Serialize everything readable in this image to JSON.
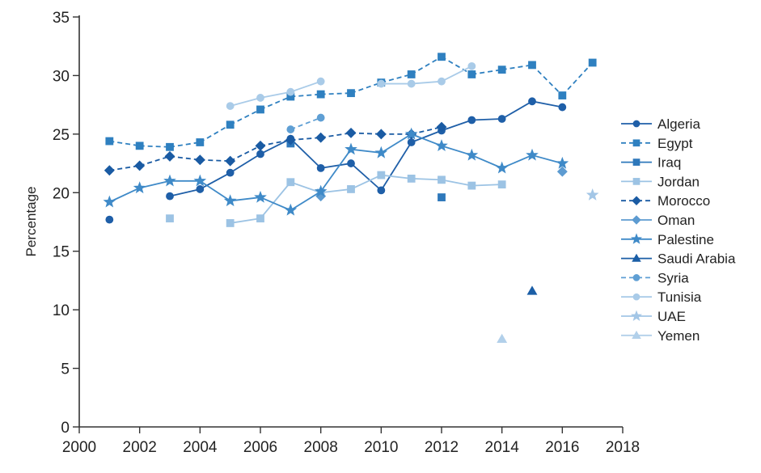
{
  "chart_data": {
    "type": "line",
    "title": "",
    "xlabel": "",
    "ylabel": "Percentage",
    "xlim": [
      2000,
      2018
    ],
    "ylim": [
      0,
      35
    ],
    "x_ticks": [
      2000,
      2002,
      2004,
      2006,
      2008,
      2010,
      2012,
      2014,
      2016,
      2018
    ],
    "y_ticks": [
      0,
      5,
      10,
      15,
      20,
      25,
      30,
      35
    ],
    "grid": false,
    "legend_position": "right",
    "series": [
      {
        "name": "Algeria",
        "color": "#1f5fa8",
        "dash": "solid",
        "marker": "circle",
        "points": [
          [
            2001,
            17.7
          ],
          [
            2003,
            19.7
          ],
          [
            2004,
            20.3
          ],
          [
            2005,
            21.7
          ],
          [
            2006,
            23.3
          ],
          [
            2007,
            24.6
          ],
          [
            2008,
            22.1
          ],
          [
            2009,
            22.5
          ],
          [
            2010,
            20.2
          ],
          [
            2011,
            24.3
          ],
          [
            2012,
            25.3
          ],
          [
            2013,
            26.2
          ],
          [
            2014,
            26.3
          ],
          [
            2015,
            27.8
          ],
          [
            2016,
            27.3
          ]
        ]
      },
      {
        "name": "Egypt",
        "color": "#2f80c0",
        "dash": "dashed",
        "marker": "square",
        "points": [
          [
            2001,
            24.4
          ],
          [
            2002,
            24.0
          ],
          [
            2003,
            23.9
          ],
          [
            2004,
            24.3
          ],
          [
            2005,
            25.8
          ],
          [
            2006,
            27.1
          ],
          [
            2007,
            28.2
          ],
          [
            2008,
            28.4
          ],
          [
            2009,
            28.5
          ],
          [
            2010,
            29.4
          ],
          [
            2011,
            30.1
          ],
          [
            2012,
            31.6
          ],
          [
            2013,
            30.1
          ],
          [
            2014,
            30.5
          ],
          [
            2015,
            30.9
          ],
          [
            2016,
            28.3
          ],
          [
            2017,
            31.1
          ]
        ]
      },
      {
        "name": "Iraq",
        "color": "#2e78bb",
        "dash": "solid",
        "marker": "square",
        "points": [
          [
            2007,
            24.2
          ],
          [
            2012,
            19.6
          ]
        ]
      },
      {
        "name": "Jordan",
        "color": "#9cc3e4",
        "dash": "solid",
        "marker": "square",
        "points": [
          [
            2003,
            17.8
          ],
          [
            2005,
            17.4
          ],
          [
            2006,
            17.8
          ],
          [
            2007,
            20.9
          ],
          [
            2008,
            20.0
          ],
          [
            2009,
            20.3
          ],
          [
            2010,
            21.5
          ],
          [
            2011,
            21.2
          ],
          [
            2012,
            21.1
          ],
          [
            2013,
            20.6
          ],
          [
            2014,
            20.7
          ]
        ]
      },
      {
        "name": "Morocco",
        "color": "#1a5ba3",
        "dash": "dashed",
        "marker": "diamond",
        "points": [
          [
            2001,
            21.9
          ],
          [
            2002,
            22.3
          ],
          [
            2003,
            23.1
          ],
          [
            2004,
            22.8
          ],
          [
            2005,
            22.7
          ],
          [
            2006,
            24.0
          ],
          [
            2007,
            24.5
          ],
          [
            2008,
            24.7
          ],
          [
            2009,
            25.1
          ],
          [
            2010,
            25.0
          ],
          [
            2011,
            25.0
          ],
          [
            2012,
            25.6
          ]
        ]
      },
      {
        "name": "Oman",
        "color": "#5d9bd1",
        "dash": "solid",
        "marker": "diamond",
        "points": [
          [
            2008,
            19.7
          ],
          [
            2016,
            21.8
          ]
        ]
      },
      {
        "name": "Palestine",
        "color": "#3f8ac8",
        "dash": "solid",
        "marker": "star",
        "points": [
          [
            2001,
            19.2
          ],
          [
            2002,
            20.4
          ],
          [
            2003,
            21.0
          ],
          [
            2004,
            21.0
          ],
          [
            2005,
            19.3
          ],
          [
            2006,
            19.6
          ],
          [
            2007,
            18.5
          ],
          [
            2008,
            20.1
          ],
          [
            2009,
            23.7
          ],
          [
            2010,
            23.4
          ],
          [
            2011,
            25.0
          ],
          [
            2012,
            24.0
          ],
          [
            2013,
            23.2
          ],
          [
            2014,
            22.1
          ],
          [
            2015,
            23.2
          ],
          [
            2016,
            22.5
          ]
        ]
      },
      {
        "name": "Saudi Arabia",
        "color": "#1b5ea6",
        "dash": "solid",
        "marker": "triangle",
        "points": [
          [
            2015,
            11.6
          ]
        ]
      },
      {
        "name": "Syria",
        "color": "#5f9fd4",
        "dash": "dashed",
        "marker": "circle",
        "points": [
          [
            2007,
            25.4
          ],
          [
            2008,
            26.4
          ]
        ]
      },
      {
        "name": "Tunisia",
        "color": "#a9cbe8",
        "dash": "solid",
        "marker": "circle",
        "points": [
          [
            2005,
            27.4
          ],
          [
            2006,
            28.1
          ],
          [
            2007,
            28.6
          ],
          [
            2008,
            29.5
          ],
          [
            2010,
            29.3
          ],
          [
            2011,
            29.3
          ],
          [
            2012,
            29.5
          ],
          [
            2013,
            30.8
          ]
        ]
      },
      {
        "name": "UAE",
        "color": "#a3c6e6",
        "dash": "solid",
        "marker": "star",
        "points": [
          [
            2017,
            19.8
          ]
        ]
      },
      {
        "name": "Yemen",
        "color": "#b2d0ea",
        "dash": "solid",
        "marker": "triangle",
        "points": [
          [
            2014,
            7.5
          ]
        ]
      }
    ]
  }
}
